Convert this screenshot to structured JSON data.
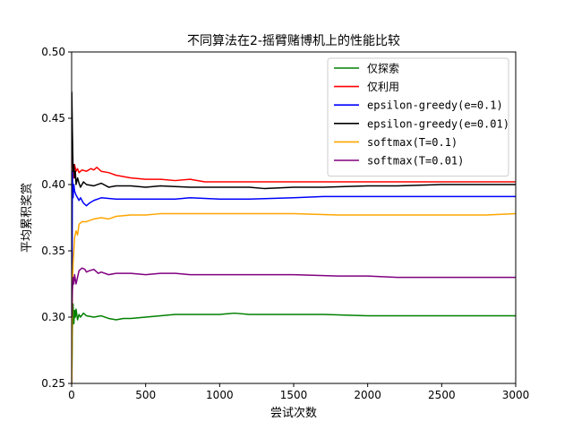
{
  "chart_data": {
    "type": "line",
    "title": "不同算法在2-摇臂赌博机上的性能比较",
    "xlabel": "尝试次数",
    "ylabel": "平均累积奖赏",
    "xlim": [
      0,
      3000
    ],
    "ylim": [
      0.25,
      0.5
    ],
    "xticks": [
      0,
      500,
      1000,
      1500,
      2000,
      2500,
      3000
    ],
    "yticks": [
      "0.25",
      "0.30",
      "0.35",
      "0.40",
      "0.45",
      "0.50"
    ],
    "grid": false,
    "legend_position": "top-right",
    "series": [
      {
        "name": "仅探索",
        "color": "#008000",
        "x": [
          1,
          5,
          10,
          15,
          20,
          25,
          30,
          40,
          50,
          60,
          80,
          100,
          150,
          200,
          250,
          300,
          350,
          400,
          500,
          600,
          700,
          800,
          900,
          1000,
          1100,
          1200,
          1300,
          1500,
          1700,
          2000,
          2200,
          2500,
          2800,
          3000
        ],
        "y": [
          0.25,
          0.29,
          0.31,
          0.295,
          0.305,
          0.3,
          0.306,
          0.298,
          0.302,
          0.3,
          0.303,
          0.301,
          0.3,
          0.301,
          0.299,
          0.298,
          0.299,
          0.299,
          0.3,
          0.301,
          0.302,
          0.302,
          0.302,
          0.302,
          0.303,
          0.302,
          0.302,
          0.302,
          0.302,
          0.301,
          0.301,
          0.301,
          0.301,
          0.301
        ]
      },
      {
        "name": "仅利用",
        "color": "#ff0000",
        "x": [
          1,
          5,
          10,
          15,
          20,
          30,
          40,
          50,
          70,
          100,
          130,
          150,
          170,
          200,
          250,
          300,
          350,
          400,
          500,
          600,
          700,
          800,
          900,
          1000,
          1200,
          1400,
          1600,
          2000,
          2200,
          2500,
          2800,
          3000
        ],
        "y": [
          0.43,
          0.42,
          0.41,
          0.405,
          0.415,
          0.41,
          0.412,
          0.409,
          0.411,
          0.41,
          0.412,
          0.411,
          0.413,
          0.41,
          0.409,
          0.407,
          0.406,
          0.405,
          0.404,
          0.404,
          0.403,
          0.404,
          0.402,
          0.402,
          0.402,
          0.402,
          0.402,
          0.402,
          0.402,
          0.402,
          0.402,
          0.402
        ]
      },
      {
        "name": "epsilon-greedy(e=0.1)",
        "color": "#0000ff",
        "x": [
          1,
          5,
          10,
          15,
          20,
          30,
          40,
          50,
          60,
          80,
          100,
          120,
          150,
          200,
          300,
          400,
          500,
          600,
          700,
          800,
          1000,
          1200,
          1500,
          1700,
          2000,
          2200,
          2500,
          2800,
          3000
        ],
        "y": [
          0.25,
          0.41,
          0.39,
          0.4,
          0.395,
          0.392,
          0.39,
          0.388,
          0.39,
          0.386,
          0.384,
          0.386,
          0.388,
          0.39,
          0.389,
          0.389,
          0.389,
          0.389,
          0.389,
          0.39,
          0.389,
          0.389,
          0.39,
          0.391,
          0.391,
          0.391,
          0.391,
          0.391,
          0.391
        ]
      },
      {
        "name": "epsilon-greedy(e=0.01)",
        "color": "#000000",
        "x": [
          1,
          5,
          10,
          15,
          20,
          25,
          30,
          40,
          50,
          60,
          80,
          100,
          150,
          200,
          250,
          300,
          400,
          500,
          600,
          800,
          1000,
          1200,
          1300,
          1500,
          1700,
          2000,
          2200,
          2500,
          2800,
          3000
        ],
        "y": [
          0.47,
          0.44,
          0.41,
          0.415,
          0.405,
          0.41,
          0.4,
          0.405,
          0.401,
          0.398,
          0.402,
          0.4,
          0.399,
          0.401,
          0.398,
          0.399,
          0.399,
          0.398,
          0.399,
          0.398,
          0.398,
          0.398,
          0.397,
          0.398,
          0.398,
          0.399,
          0.399,
          0.4,
          0.4,
          0.4
        ]
      },
      {
        "name": "softmax(T=0.1)",
        "color": "#ffa500",
        "x": [
          1,
          5,
          10,
          15,
          20,
          30,
          40,
          50,
          70,
          100,
          150,
          200,
          250,
          300,
          400,
          500,
          600,
          700,
          800,
          900,
          1000,
          1200,
          1500,
          1800,
          2000,
          2200,
          2500,
          2800,
          3000
        ],
        "y": [
          0.25,
          0.32,
          0.34,
          0.35,
          0.36,
          0.365,
          0.362,
          0.37,
          0.372,
          0.372,
          0.374,
          0.375,
          0.374,
          0.376,
          0.377,
          0.377,
          0.378,
          0.378,
          0.378,
          0.378,
          0.378,
          0.378,
          0.378,
          0.377,
          0.377,
          0.377,
          0.377,
          0.377,
          0.378
        ]
      },
      {
        "name": "softmax(T=0.01)",
        "color": "#800080",
        "x": [
          1,
          5,
          10,
          15,
          20,
          30,
          40,
          50,
          70,
          90,
          100,
          120,
          150,
          180,
          200,
          250,
          300,
          400,
          500,
          600,
          700,
          800,
          1000,
          1200,
          1500,
          1800,
          2000,
          2200,
          2500,
          2800,
          3000
        ],
        "y": [
          0.3,
          0.32,
          0.33,
          0.325,
          0.332,
          0.325,
          0.33,
          0.335,
          0.337,
          0.336,
          0.334,
          0.335,
          0.336,
          0.333,
          0.334,
          0.332,
          0.333,
          0.333,
          0.332,
          0.333,
          0.333,
          0.332,
          0.332,
          0.332,
          0.332,
          0.331,
          0.331,
          0.33,
          0.33,
          0.33,
          0.33
        ]
      }
    ]
  }
}
